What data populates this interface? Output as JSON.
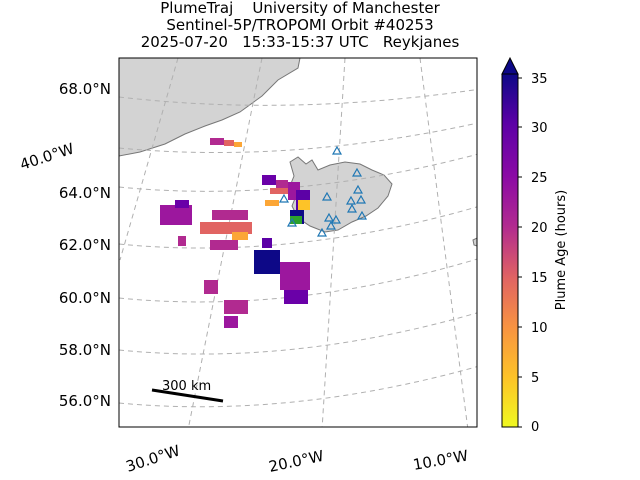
{
  "title": {
    "line1": "PlumeTraj    University of Manchester",
    "line2": "Sentinel-5P/TROPOMI Orbit #40253",
    "line3": "2025-07-20   15:33-15:37 UTC   Reykjanes"
  },
  "map": {
    "latitude_labels": [
      "68.0°N",
      "64.0°N",
      "62.0°N",
      "60.0°N",
      "58.0°N",
      "56.0°N"
    ],
    "longitude_labels": [
      "30.0°W",
      "20.0°W",
      "10.0°W"
    ],
    "side_label": "40.0°W",
    "scale_bar_label": "300 km",
    "land_color": "#d3d3d3",
    "gridline_color": "#b0b0b0",
    "volcano_marker_color": "#1f77b4",
    "volcano_marker_shape": "triangle-open"
  },
  "colorbar": {
    "label": "Plume Age (hours)",
    "min": 0,
    "max": 35,
    "ticks": [
      "0",
      "5",
      "10",
      "15",
      "20",
      "25",
      "30",
      "35"
    ],
    "extend": "max",
    "colormap": "plasma_r",
    "colors": [
      "#f0f921",
      "#fca636",
      "#e16462",
      "#b12a90",
      "#6a00a8",
      "#0d0887"
    ]
  }
}
